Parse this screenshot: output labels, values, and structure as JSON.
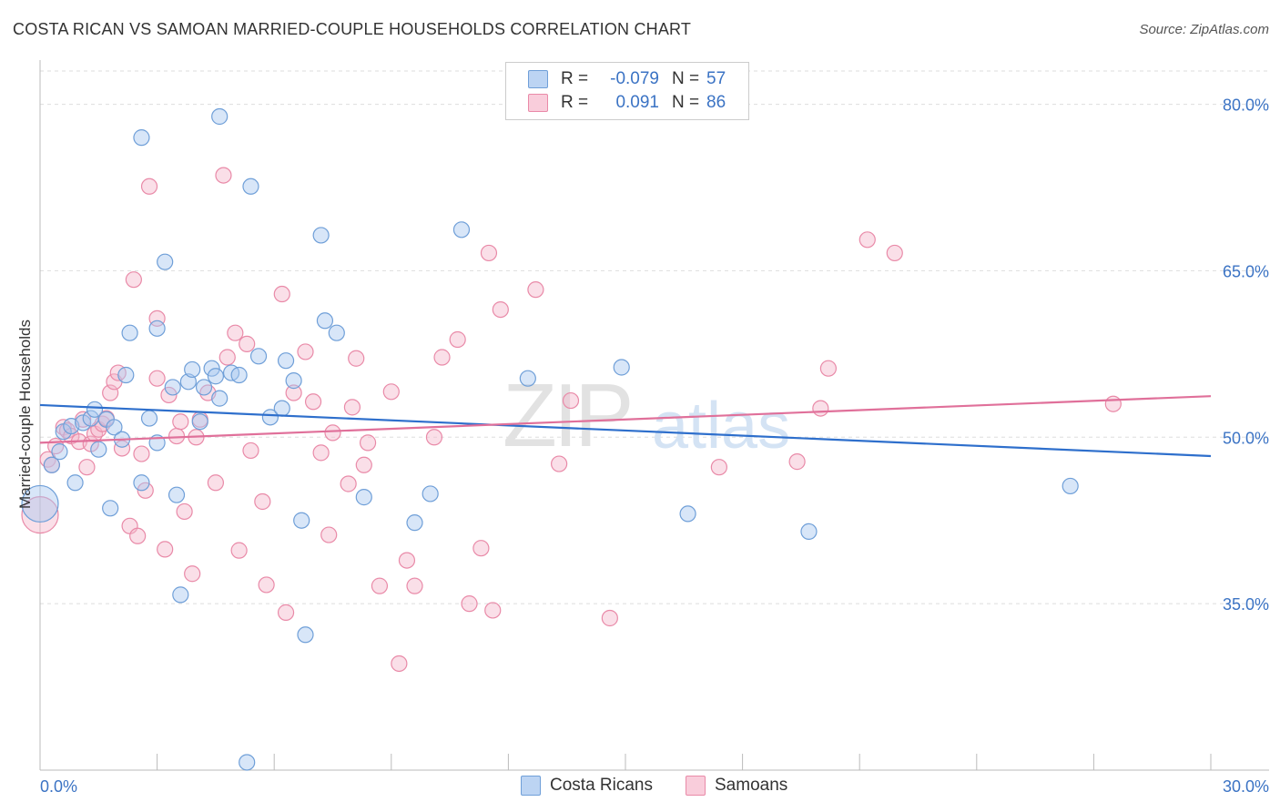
{
  "title": "COSTA RICAN VS SAMOAN MARRIED-COUPLE HOUSEHOLDS CORRELATION CHART",
  "source": "Source: ZipAtlas.com",
  "watermark": {
    "zip": "ZIP",
    "atlas": "atlas"
  },
  "legend": {
    "rows": [
      {
        "r_label": "R =",
        "r_value": "-0.079",
        "n_label": "N =",
        "n_value": "57"
      },
      {
        "r_label": "R =",
        "r_value": "0.091",
        "n_label": "N =",
        "n_value": "86"
      }
    ],
    "series_names": [
      "Costa Ricans",
      "Samoans"
    ]
  },
  "colors": {
    "blue_fill": "#a9c8ef",
    "blue_stroke": "#6f9fd8",
    "blue_line": "#2e6fcc",
    "pink_fill": "#f5b8cb",
    "pink_stroke": "#e98aa8",
    "pink_line": "#e0709a",
    "axis_label": "#3b73c4",
    "grid": "#dddddd"
  },
  "chart_data": {
    "type": "scatter",
    "title": "COSTA RICAN VS SAMOAN MARRIED-COUPLE HOUSEHOLDS CORRELATION CHART",
    "xlabel": "",
    "ylabel": "Married-couple Households",
    "xlim": [
      0,
      30
    ],
    "ylim": [
      20,
      83
    ],
    "x_tick_labels": [
      "0.0%",
      "30.0%"
    ],
    "y_ticks": [
      35,
      50,
      65,
      80
    ],
    "y_tick_labels": [
      "35.0%",
      "50.0%",
      "65.0%",
      "80.0%"
    ],
    "grid": true,
    "legend_position": "top-center",
    "series": [
      {
        "name": "Costa Ricans",
        "color": "#a9c8ef",
        "trend": {
          "x": [
            0,
            30
          ],
          "y": [
            52.9,
            48.3
          ]
        },
        "points": [
          [
            0.0,
            44.0,
            "large"
          ],
          [
            0.3,
            47.5
          ],
          [
            0.5,
            48.7
          ],
          [
            0.6,
            50.5
          ],
          [
            0.8,
            51.0
          ],
          [
            0.9,
            45.9
          ],
          [
            1.1,
            51.3
          ],
          [
            1.3,
            51.7
          ],
          [
            1.4,
            52.5
          ],
          [
            1.5,
            48.9
          ],
          [
            1.7,
            51.6
          ],
          [
            1.8,
            43.6
          ],
          [
            1.9,
            50.9
          ],
          [
            2.1,
            49.8
          ],
          [
            2.2,
            55.6
          ],
          [
            2.3,
            59.4
          ],
          [
            2.6,
            77.0
          ],
          [
            2.6,
            45.9
          ],
          [
            2.8,
            51.7
          ],
          [
            3.0,
            49.5
          ],
          [
            3.0,
            59.8
          ],
          [
            3.2,
            65.8
          ],
          [
            3.4,
            54.5
          ],
          [
            3.5,
            44.8
          ],
          [
            3.6,
            35.8
          ],
          [
            3.8,
            55.0
          ],
          [
            3.9,
            56.1
          ],
          [
            4.1,
            51.4
          ],
          [
            4.2,
            54.5
          ],
          [
            4.4,
            56.2
          ],
          [
            4.6,
            53.5
          ],
          [
            4.5,
            55.5
          ],
          [
            4.6,
            78.9
          ],
          [
            4.9,
            55.8
          ],
          [
            5.1,
            55.6
          ],
          [
            5.3,
            20.7
          ],
          [
            5.4,
            72.6
          ],
          [
            5.6,
            57.3
          ],
          [
            5.9,
            51.8
          ],
          [
            6.2,
            52.6
          ],
          [
            6.3,
            56.9
          ],
          [
            6.5,
            55.1
          ],
          [
            6.7,
            42.5
          ],
          [
            6.8,
            32.2
          ],
          [
            7.2,
            68.2
          ],
          [
            7.3,
            60.5
          ],
          [
            7.6,
            59.4
          ],
          [
            8.3,
            44.6
          ],
          [
            9.6,
            42.3
          ],
          [
            10.0,
            44.9
          ],
          [
            10.8,
            68.7
          ],
          [
            12.5,
            55.3
          ],
          [
            14.9,
            56.3
          ],
          [
            16.6,
            43.1
          ],
          [
            19.7,
            41.5
          ],
          [
            26.4,
            45.6
          ]
        ]
      },
      {
        "name": "Samoans",
        "color": "#f5b8cb",
        "trend": {
          "x": [
            0,
            30
          ],
          "y": [
            49.5,
            53.7
          ]
        },
        "points": [
          [
            0.0,
            43.0,
            "large"
          ],
          [
            0.2,
            48.0
          ],
          [
            0.3,
            47.5
          ],
          [
            0.4,
            49.2
          ],
          [
            0.6,
            50.9
          ],
          [
            0.7,
            50.6
          ],
          [
            0.8,
            50.1
          ],
          [
            1.0,
            49.6
          ],
          [
            1.1,
            51.6
          ],
          [
            1.2,
            47.3
          ],
          [
            1.3,
            49.4
          ],
          [
            1.4,
            50.3
          ],
          [
            1.5,
            50.7
          ],
          [
            1.6,
            51.2
          ],
          [
            1.7,
            51.7
          ],
          [
            1.8,
            54.0
          ],
          [
            1.9,
            55.0
          ],
          [
            2.0,
            55.8
          ],
          [
            2.1,
            49.0
          ],
          [
            2.3,
            42.0
          ],
          [
            2.4,
            64.2
          ],
          [
            2.5,
            41.1
          ],
          [
            2.6,
            48.5
          ],
          [
            2.7,
            45.2
          ],
          [
            2.8,
            72.6
          ],
          [
            3.0,
            60.7
          ],
          [
            3.0,
            55.3
          ],
          [
            3.2,
            39.9
          ],
          [
            3.3,
            53.8
          ],
          [
            3.5,
            50.1
          ],
          [
            3.6,
            51.4
          ],
          [
            3.7,
            43.3
          ],
          [
            3.9,
            37.7
          ],
          [
            4.0,
            50.0
          ],
          [
            4.1,
            51.6
          ],
          [
            4.3,
            54.0
          ],
          [
            4.5,
            45.9
          ],
          [
            4.7,
            73.6
          ],
          [
            4.8,
            57.2
          ],
          [
            5.0,
            59.4
          ],
          [
            5.1,
            39.8
          ],
          [
            5.3,
            58.4
          ],
          [
            5.4,
            48.8
          ],
          [
            5.7,
            44.2
          ],
          [
            5.8,
            36.7
          ],
          [
            6.2,
            62.9
          ],
          [
            6.3,
            34.2
          ],
          [
            6.5,
            54.0
          ],
          [
            6.8,
            57.7
          ],
          [
            7.0,
            53.2
          ],
          [
            7.2,
            48.6
          ],
          [
            7.4,
            41.2
          ],
          [
            7.5,
            50.4
          ],
          [
            7.9,
            45.8
          ],
          [
            8.0,
            52.7
          ],
          [
            8.1,
            57.1
          ],
          [
            8.3,
            47.5
          ],
          [
            8.4,
            49.5
          ],
          [
            8.7,
            36.6
          ],
          [
            9.0,
            54.1
          ],
          [
            9.2,
            29.6
          ],
          [
            9.4,
            38.9
          ],
          [
            9.6,
            36.6
          ],
          [
            10.1,
            50.0
          ],
          [
            10.3,
            57.2
          ],
          [
            10.7,
            58.8
          ],
          [
            11.0,
            35.0
          ],
          [
            11.3,
            40.0
          ],
          [
            11.5,
            66.6
          ],
          [
            11.6,
            34.4
          ],
          [
            11.8,
            61.5
          ],
          [
            12.7,
            63.3
          ],
          [
            13.3,
            47.6
          ],
          [
            13.6,
            53.3
          ],
          [
            14.6,
            33.7
          ],
          [
            17.4,
            47.3
          ],
          [
            19.4,
            47.8
          ],
          [
            20.0,
            52.6
          ],
          [
            20.2,
            56.2
          ],
          [
            21.2,
            67.8
          ],
          [
            21.9,
            66.6
          ],
          [
            27.5,
            53.0
          ]
        ]
      }
    ]
  }
}
